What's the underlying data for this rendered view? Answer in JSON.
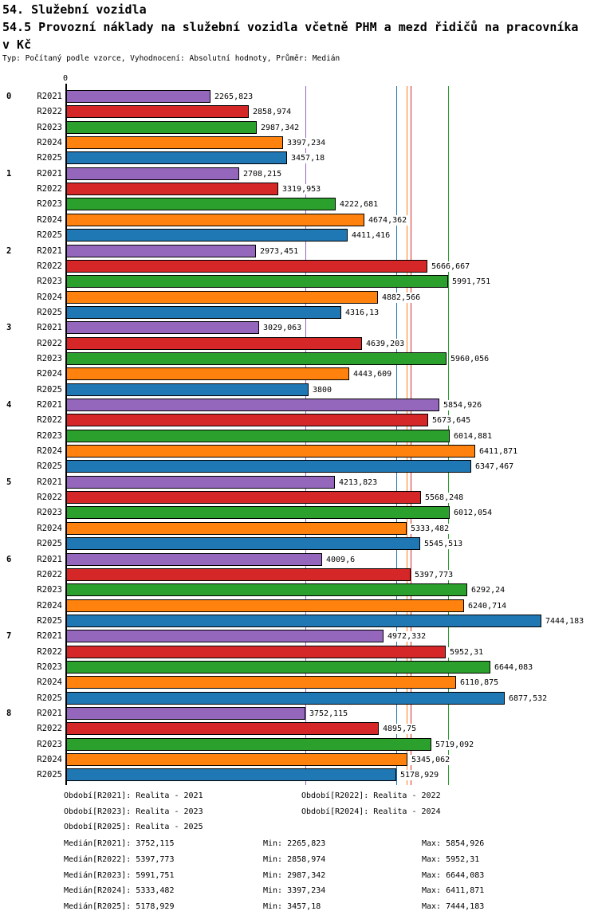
{
  "title_lines": [
    "54. Služební vozidla",
    "54.5 Provozní náklady na služební vozidla včetně PHM a mezd řidičů na pracovníka",
    "v Kč"
  ],
  "subtitle": "Typ: Počítaný podle vzorce, Vyhodnocení: Absolutní hodnoty, Průměr: Medián",
  "axis": {
    "zero_label": "0"
  },
  "chart_data": {
    "type": "bar",
    "orientation": "horizontal",
    "categories": [
      "0",
      "1",
      "2",
      "3",
      "4",
      "5",
      "6",
      "7",
      "8"
    ],
    "xlim": [
      0,
      7600
    ],
    "grid": false,
    "series": [
      {
        "name": "R2021",
        "color": "#9467bd",
        "median": 3752.115,
        "median_label": "3752,115",
        "values": [
          2265.823,
          2708.215,
          2973.451,
          3029.063,
          5854.926,
          4213.823,
          4009.6,
          4972.332,
          3752.115
        ],
        "labels": [
          "2265,823",
          "2708,215",
          "2973,451",
          "3029,063",
          "5854,926",
          "4213,823",
          "4009,6",
          "4972,332",
          "3752,115"
        ]
      },
      {
        "name": "R2022",
        "color": "#d62728",
        "median": 5397.773,
        "median_label": "5397,773",
        "values": [
          2858.974,
          3319.953,
          5666.667,
          4639.203,
          5673.645,
          5568.248,
          5397.773,
          5952.31,
          4895.75
        ],
        "labels": [
          "2858,974",
          "3319,953",
          "5666,667",
          "4639,203",
          "5673,645",
          "5568,248",
          "5397,773",
          "5952,31",
          "4895,75"
        ]
      },
      {
        "name": "R2023",
        "color": "#2ca02c",
        "median": 5991.751,
        "median_label": "5991,751",
        "values": [
          2987.342,
          4222.681,
          5991.751,
          5960.056,
          6014.881,
          6012.054,
          6292.24,
          6644.083,
          5719.092
        ],
        "labels": [
          "2987,342",
          "4222,681",
          "5991,751",
          "5960,056",
          "6014,881",
          "6012,054",
          "6292,24",
          "6644,083",
          "5719,092"
        ]
      },
      {
        "name": "R2024",
        "color": "#ff820e",
        "median": 5333.482,
        "median_label": "5333,482",
        "values": [
          3397.234,
          4674.362,
          4882.566,
          4443.609,
          6411.871,
          5333.482,
          6240.714,
          6110.875,
          5345.062
        ],
        "labels": [
          "3397,234",
          "4674,362",
          "4882,566",
          "4443,609",
          "6411,871",
          "5333,482",
          "6240,714",
          "6110,875",
          "5345,062"
        ]
      },
      {
        "name": "R2025",
        "color": "#1f77b4",
        "median": 5178.929,
        "median_label": "5178,929",
        "values": [
          3457.18,
          4411.416,
          4316.13,
          3800,
          6347.467,
          5545.513,
          7444.183,
          6877.532,
          5178.929
        ],
        "labels": [
          "3457,18",
          "4411,416",
          "4316,13",
          "3800",
          "6347,467",
          "5545,513",
          "7444,183",
          "6877,532",
          "5178,929"
        ]
      }
    ]
  },
  "legend": {
    "items": [
      "Období[R2021]: Realita - 2021",
      "Období[R2022]: Realita - 2022",
      "Období[R2023]: Realita - 2023",
      "Období[R2024]: Realita - 2024",
      "Období[R2025]: Realita - 2025"
    ]
  },
  "stats": {
    "rows": [
      {
        "median": "Medián[R2021]: 3752,115",
        "min": "Min: 2265,823",
        "max": "Max: 5854,926"
      },
      {
        "median": "Medián[R2022]: 5397,773",
        "min": "Min: 2858,974",
        "max": "Max: 5952,31"
      },
      {
        "median": "Medián[R2023]: 5991,751",
        "min": "Min: 2987,342",
        "max": "Max: 6644,083"
      },
      {
        "median": "Medián[R2024]: 5333,482",
        "min": "Min: 3397,234",
        "max": "Max: 6411,871"
      },
      {
        "median": "Medián[R2025]: 5178,929",
        "min": "Min: 3457,18",
        "max": "Max: 7444,183"
      }
    ]
  }
}
